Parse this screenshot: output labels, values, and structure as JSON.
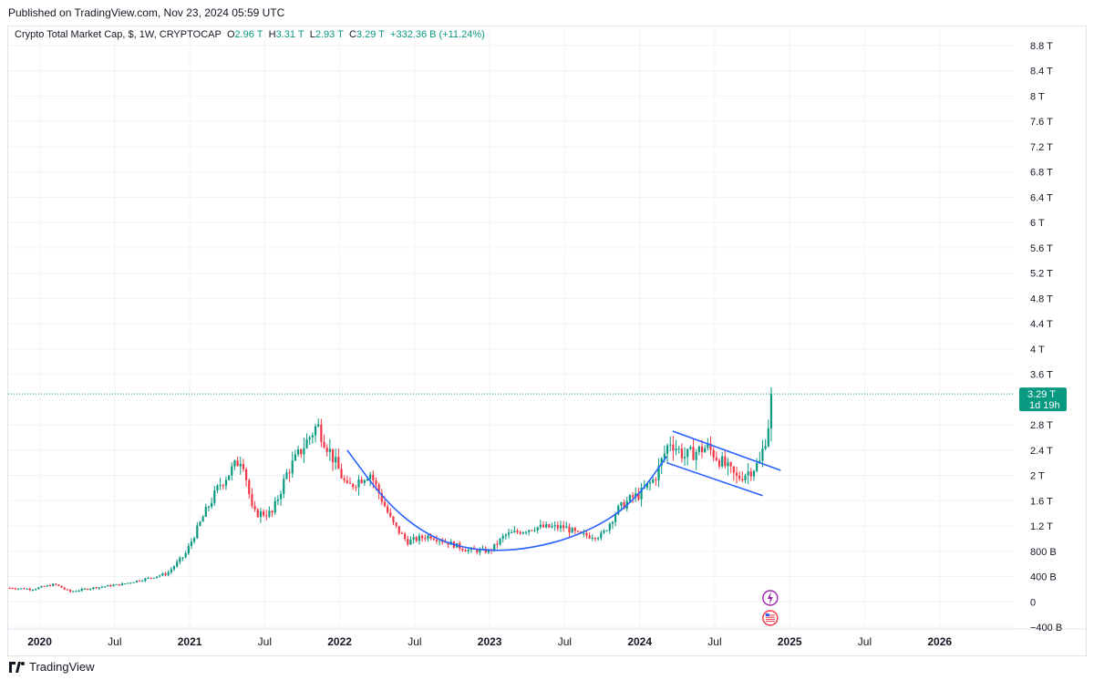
{
  "header": {
    "published": "Published on TradingView.com, Nov 23, 2024 05:59 UTC"
  },
  "legend": {
    "symbol": "Crypto Total Market Cap, $, 1W, CRYPTOCAP",
    "o_label": "O",
    "o_value": "2.96 T",
    "h_label": "H",
    "h_value": "3.31 T",
    "l_label": "L",
    "l_value": "2.93 T",
    "c_label": "C",
    "c_value": "3.29 T",
    "change": "+332.36 B (+11.24%)"
  },
  "price_tag": {
    "value": "3.29 T",
    "countdown": "1d 19h",
    "color": "#089981"
  },
  "footer": {
    "brand": "TradingView"
  },
  "colors": {
    "up": "#089981",
    "down": "#f23645",
    "trendline": "#2962ff",
    "grid": "#f0f3fa",
    "axis_text": "#131722"
  },
  "chart_data": {
    "type": "candlestick",
    "title": "Crypto Total Market Cap, $, 1W, CRYPTOCAP",
    "units": "trillion USD",
    "ylim": [
      -0.4,
      8.9
    ],
    "y_ticks": [
      {
        "v": 8.8,
        "label": "8.8 T"
      },
      {
        "v": 8.4,
        "label": "8.4 T"
      },
      {
        "v": 8.0,
        "label": "8 T"
      },
      {
        "v": 7.6,
        "label": "7.6 T"
      },
      {
        "v": 7.2,
        "label": "7.2 T"
      },
      {
        "v": 6.8,
        "label": "6.8 T"
      },
      {
        "v": 6.4,
        "label": "6.4 T"
      },
      {
        "v": 6.0,
        "label": "6 T"
      },
      {
        "v": 5.6,
        "label": "5.6 T"
      },
      {
        "v": 5.2,
        "label": "5.2 T"
      },
      {
        "v": 4.8,
        "label": "4.8 T"
      },
      {
        "v": 4.4,
        "label": "4.4 T"
      },
      {
        "v": 4.0,
        "label": "4 T"
      },
      {
        "v": 3.6,
        "label": "3.6 T"
      },
      {
        "v": 2.8,
        "label": "2.8 T"
      },
      {
        "v": 2.4,
        "label": "2.4 T"
      },
      {
        "v": 2.0,
        "label": "2 T"
      },
      {
        "v": 1.6,
        "label": "1.6 T"
      },
      {
        "v": 1.2,
        "label": "1.2 T"
      },
      {
        "v": 0.8,
        "label": "800 B"
      },
      {
        "v": 0.4,
        "label": "400 B"
      },
      {
        "v": 0.0,
        "label": "0"
      },
      {
        "v": -0.4,
        "label": "−400 B"
      }
    ],
    "x_ticks": [
      {
        "t": 2020.0,
        "label": "2020",
        "bold": true
      },
      {
        "t": 2020.5,
        "label": "Jul",
        "bold": false
      },
      {
        "t": 2021.0,
        "label": "2021",
        "bold": true
      },
      {
        "t": 2021.5,
        "label": "Jul",
        "bold": false
      },
      {
        "t": 2022.0,
        "label": "2022",
        "bold": true
      },
      {
        "t": 2022.5,
        "label": "Jul",
        "bold": false
      },
      {
        "t": 2023.0,
        "label": "2023",
        "bold": true
      },
      {
        "t": 2023.5,
        "label": "Jul",
        "bold": false
      },
      {
        "t": 2024.0,
        "label": "2024",
        "bold": true
      },
      {
        "t": 2024.5,
        "label": "Jul",
        "bold": false
      },
      {
        "t": 2025.0,
        "label": "2025",
        "bold": true
      },
      {
        "t": 2025.5,
        "label": "Jul",
        "bold": false
      },
      {
        "t": 2026.0,
        "label": "2026",
        "bold": true
      }
    ],
    "xlim": [
      2019.79,
      2026.5
    ],
    "last_close": 3.29,
    "price_anchors": [
      [
        2019.8,
        0.22
      ],
      [
        2019.95,
        0.2
      ],
      [
        2020.1,
        0.28
      ],
      [
        2020.2,
        0.16
      ],
      [
        2020.35,
        0.22
      ],
      [
        2020.55,
        0.28
      ],
      [
        2020.7,
        0.36
      ],
      [
        2020.85,
        0.45
      ],
      [
        2020.97,
        0.75
      ],
      [
        2021.1,
        1.4
      ],
      [
        2021.2,
        1.85
      ],
      [
        2021.35,
        2.3
      ],
      [
        2021.42,
        1.4
      ],
      [
        2021.55,
        1.4
      ],
      [
        2021.65,
        2.05
      ],
      [
        2021.85,
        2.8
      ],
      [
        2021.95,
        2.3
      ],
      [
        2022.05,
        1.8
      ],
      [
        2022.2,
        2.05
      ],
      [
        2022.35,
        1.25
      ],
      [
        2022.45,
        0.95
      ],
      [
        2022.6,
        1.05
      ],
      [
        2022.85,
        0.82
      ],
      [
        2023.0,
        0.8
      ],
      [
        2023.1,
        1.05
      ],
      [
        2023.3,
        1.18
      ],
      [
        2023.5,
        1.18
      ],
      [
        2023.6,
        1.05
      ],
      [
        2023.75,
        1.05
      ],
      [
        2023.85,
        1.45
      ],
      [
        2023.95,
        1.65
      ],
      [
        2024.0,
        1.7
      ],
      [
        2024.1,
        1.95
      ],
      [
        2024.2,
        2.55
      ],
      [
        2024.3,
        2.3
      ],
      [
        2024.45,
        2.45
      ],
      [
        2024.55,
        2.2
      ],
      [
        2024.65,
        1.95
      ],
      [
        2024.75,
        2.1
      ],
      [
        2024.8,
        2.2
      ],
      [
        2024.85,
        2.7
      ],
      [
        2024.89,
        3.29
      ]
    ],
    "trendlines": [
      {
        "name": "cup-curve",
        "points": [
          [
            2022.05,
            2.4
          ],
          [
            2022.3,
            1.6
          ],
          [
            2022.55,
            1.1
          ],
          [
            2022.8,
            0.86
          ],
          [
            2023.05,
            0.8
          ],
          [
            2023.3,
            0.86
          ],
          [
            2023.55,
            1.02
          ],
          [
            2023.8,
            1.3
          ],
          [
            2024.0,
            1.7
          ],
          [
            2024.18,
            2.3
          ]
        ]
      },
      {
        "name": "channel-upper",
        "points": [
          [
            2024.22,
            2.7
          ],
          [
            2024.94,
            2.08
          ]
        ]
      },
      {
        "name": "channel-lower",
        "points": [
          [
            2024.18,
            2.2
          ],
          [
            2024.82,
            1.68
          ]
        ]
      }
    ]
  }
}
